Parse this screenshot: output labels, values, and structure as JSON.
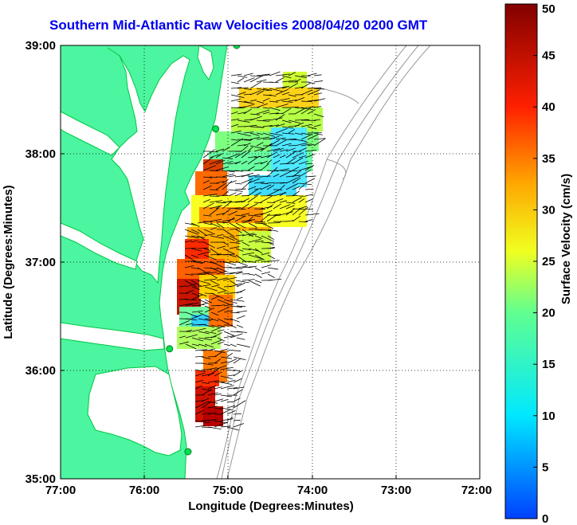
{
  "title": "Southern Mid-Atlantic Raw Velocities 2008/04/20 0200 GMT",
  "xlabel": "Longitude (Degrees:Minutes)",
  "ylabel": "Latitude (Degrees:Minutes)",
  "x_ticks": [
    "77:00",
    "76:00",
    "75:00",
    "74:00",
    "73:00",
    "72:00"
  ],
  "y_ticks": [
    "39:00",
    "38:00",
    "37:00",
    "36:00",
    "35:00"
  ],
  "colorbar": {
    "label": "Surface Velocity (cm/s)",
    "ticks": [
      "0",
      "5",
      "10",
      "15",
      "20",
      "25",
      "30",
      "35",
      "40",
      "45",
      "50"
    ],
    "min": 0,
    "max": 50
  },
  "colors": {
    "land": "#4cf59f",
    "land_edge": "#00c846",
    "title": "#0000ee",
    "bathy": "#999999"
  },
  "chart_data": {
    "type": "map",
    "title": "Southern Mid-Atlantic Raw Velocities 2008/04/20 0200 GMT",
    "xlim": [
      -77,
      -72
    ],
    "ylim": [
      35,
      39
    ],
    "grid": "dotted",
    "colorbar_range": [
      0,
      50
    ],
    "stations": [
      [
        -74.9,
        39.0
      ],
      [
        -75.15,
        38.23
      ],
      [
        -75.7,
        36.2
      ],
      [
        -75.48,
        35.25
      ]
    ]
  }
}
